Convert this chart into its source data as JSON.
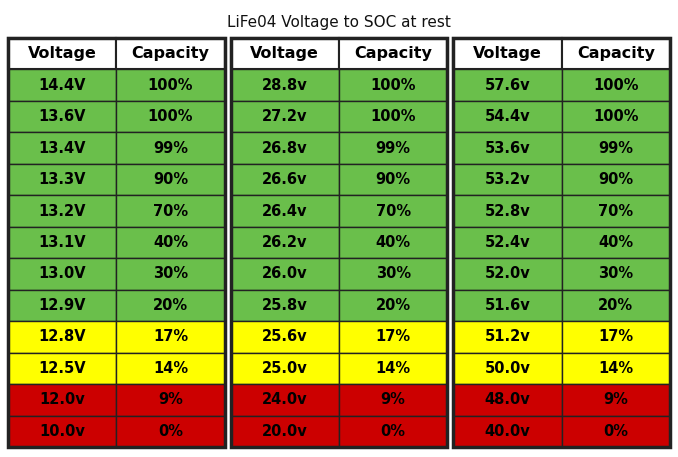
{
  "title": "LiFe04 Voltage to SOC at rest",
  "title_fontsize": 11,
  "tables": [
    {
      "headers": [
        "Voltage",
        "Capacity"
      ],
      "rows": [
        [
          "14.4V",
          "100%"
        ],
        [
          "13.6V",
          "100%"
        ],
        [
          "13.4V",
          "99%"
        ],
        [
          "13.3V",
          "90%"
        ],
        [
          "13.2V",
          "70%"
        ],
        [
          "13.1V",
          "40%"
        ],
        [
          "13.0V",
          "30%"
        ],
        [
          "12.9V",
          "20%"
        ],
        [
          "12.8V",
          "17%"
        ],
        [
          "12.5V",
          "14%"
        ],
        [
          "12.0v",
          "9%"
        ],
        [
          "10.0v",
          "0%"
        ]
      ],
      "colors": [
        "#6abf4b",
        "#6abf4b",
        "#6abf4b",
        "#6abf4b",
        "#6abf4b",
        "#6abf4b",
        "#6abf4b",
        "#6abf4b",
        "#ffff00",
        "#ffff00",
        "#cc0000",
        "#cc0000"
      ]
    },
    {
      "headers": [
        "Voltage",
        "Capacity"
      ],
      "rows": [
        [
          "28.8v",
          "100%"
        ],
        [
          "27.2v",
          "100%"
        ],
        [
          "26.8v",
          "99%"
        ],
        [
          "26.6v",
          "90%"
        ],
        [
          "26.4v",
          "70%"
        ],
        [
          "26.2v",
          "40%"
        ],
        [
          "26.0v",
          "30%"
        ],
        [
          "25.8v",
          "20%"
        ],
        [
          "25.6v",
          "17%"
        ],
        [
          "25.0v",
          "14%"
        ],
        [
          "24.0v",
          "9%"
        ],
        [
          "20.0v",
          "0%"
        ]
      ],
      "colors": [
        "#6abf4b",
        "#6abf4b",
        "#6abf4b",
        "#6abf4b",
        "#6abf4b",
        "#6abf4b",
        "#6abf4b",
        "#6abf4b",
        "#ffff00",
        "#ffff00",
        "#cc0000",
        "#cc0000"
      ]
    },
    {
      "headers": [
        "Voltage",
        "Capacity"
      ],
      "rows": [
        [
          "57.6v",
          "100%"
        ],
        [
          "54.4v",
          "100%"
        ],
        [
          "53.6v",
          "99%"
        ],
        [
          "53.2v",
          "90%"
        ],
        [
          "52.8v",
          "70%"
        ],
        [
          "52.4v",
          "40%"
        ],
        [
          "52.0v",
          "30%"
        ],
        [
          "51.6v",
          "20%"
        ],
        [
          "51.2v",
          "17%"
        ],
        [
          "50.0v",
          "14%"
        ],
        [
          "48.0v",
          "9%"
        ],
        [
          "40.0v",
          "0%"
        ]
      ],
      "colors": [
        "#6abf4b",
        "#6abf4b",
        "#6abf4b",
        "#6abf4b",
        "#6abf4b",
        "#6abf4b",
        "#6abf4b",
        "#6abf4b",
        "#ffff00",
        "#ffff00",
        "#cc0000",
        "#cc0000"
      ]
    }
  ],
  "header_bg": "#ffffff",
  "header_text": "#000000",
  "fig_bg": "#ffffff",
  "border_color": "#222222",
  "cell_text_color": "#000000",
  "cell_fontsize": 10.5,
  "header_fontsize": 11.5,
  "fig_width": 6.78,
  "fig_height": 4.57,
  "dpi": 100
}
